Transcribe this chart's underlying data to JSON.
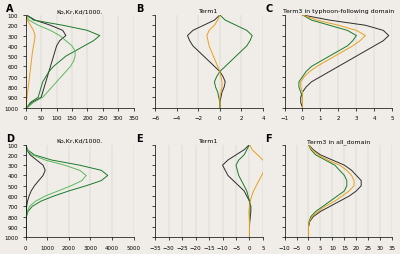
{
  "pressure_levels": [
    100,
    150,
    200,
    250,
    300,
    350,
    400,
    450,
    500,
    550,
    600,
    650,
    700,
    750,
    800,
    850,
    900,
    950,
    1000
  ],
  "panel_A": {
    "title": "Ko,Kr,Kd/1000.",
    "xlim": [
      0,
      350
    ],
    "xticks": [
      0,
      50,
      100,
      150,
      200,
      250,
      300,
      350
    ],
    "Ko_black": [
      2,
      30,
      80,
      120,
      130,
      110,
      100,
      95,
      90,
      85,
      80,
      75,
      70,
      65,
      60,
      55,
      50,
      20,
      5
    ],
    "Kr_green_dark": [
      2,
      25,
      120,
      200,
      240,
      220,
      190,
      160,
      130,
      110,
      90,
      75,
      65,
      55,
      50,
      45,
      40,
      15,
      3
    ],
    "Kd_green_light": [
      2,
      10,
      40,
      80,
      110,
      130,
      150,
      160,
      160,
      155,
      145,
      130,
      115,
      100,
      85,
      70,
      55,
      25,
      5
    ],
    "Ko_orange": [
      1,
      5,
      15,
      25,
      30,
      28,
      25,
      22,
      20,
      18,
      16,
      14,
      12,
      10,
      8,
      6,
      4,
      2,
      1
    ]
  },
  "panel_B": {
    "title": "Term1",
    "xlim": [
      -6,
      4
    ],
    "xticks": [
      -6,
      -4,
      -2,
      0,
      2,
      4
    ],
    "line_black": [
      0,
      -0.5,
      -1.5,
      -2.5,
      -3.0,
      -2.8,
      -2.5,
      -2.0,
      -1.5,
      -1.0,
      -0.5,
      0,
      0.3,
      0.5,
      0.4,
      0.2,
      0.1,
      0,
      0
    ],
    "line_green": [
      0,
      0.5,
      1.5,
      2.5,
      3.0,
      2.8,
      2.5,
      2.0,
      1.5,
      1.0,
      0.5,
      0,
      -0.3,
      -0.5,
      -0.4,
      -0.2,
      -0.1,
      0,
      0
    ],
    "line_orange": [
      0,
      -0.2,
      -0.5,
      -1.0,
      -1.2,
      -1.1,
      -1.0,
      -0.8,
      -0.6,
      -0.4,
      -0.2,
      0,
      0.1,
      0.2,
      0.2,
      0.1,
      0,
      0,
      0
    ]
  },
  "panel_C": {
    "title": "Term3 in typhoon-following domain",
    "xlim": [
      -1,
      5
    ],
    "xticks": [
      -1,
      0,
      1,
      2,
      3,
      4,
      5
    ],
    "line_black": [
      0,
      1.5,
      3.5,
      4.5,
      4.8,
      4.5,
      4.0,
      3.5,
      3.0,
      2.5,
      2.0,
      1.5,
      1.0,
      0.5,
      0.2,
      0,
      -0.1,
      -0.1,
      0
    ],
    "line_green": [
      0,
      0.5,
      1.5,
      2.5,
      3.0,
      2.8,
      2.5,
      2.0,
      1.5,
      1.0,
      0.5,
      0.2,
      0,
      -0.2,
      -0.2,
      -0.1,
      0,
      0,
      0
    ],
    "line_orange": [
      0,
      0.8,
      2.0,
      3.0,
      3.5,
      3.2,
      2.8,
      2.3,
      1.8,
      1.3,
      0.8,
      0.4,
      0.1,
      -0.1,
      -0.1,
      0,
      0,
      0,
      0
    ]
  },
  "panel_D": {
    "title": "Ko,Kr,Kd/1000.",
    "xlim": [
      0,
      5000
    ],
    "xticks": [
      0,
      1000,
      2000,
      3000,
      4000,
      5000
    ],
    "Ko_black": [
      5,
      50,
      200,
      500,
      800,
      900,
      800,
      600,
      400,
      250,
      150,
      80,
      40,
      15,
      5,
      2,
      1,
      0,
      0
    ],
    "Kr_green_dark": [
      5,
      80,
      400,
      1200,
      2500,
      3500,
      3800,
      3500,
      2800,
      2000,
      1300,
      700,
      300,
      100,
      30,
      8,
      2,
      0,
      0
    ],
    "Kd_green_light": [
      5,
      60,
      300,
      900,
      1800,
      2500,
      2800,
      2600,
      2100,
      1500,
      900,
      450,
      180,
      60,
      15,
      4,
      1,
      0,
      0
    ]
  },
  "panel_E": {
    "title": "Term1",
    "xlim": [
      -35,
      5
    ],
    "xticks": [
      -35,
      -30,
      -25,
      -20,
      -15,
      -10,
      -5,
      0,
      5
    ],
    "line_black": [
      0,
      -2,
      -5,
      -8,
      -10,
      -9,
      -8,
      -6,
      -4,
      -2,
      -1,
      0,
      0.5,
      0.5,
      0.3,
      0.1,
      0,
      0,
      0
    ],
    "line_green": [
      0,
      -1,
      -2,
      -4,
      -5,
      -4.5,
      -4,
      -3,
      -2,
      -1,
      -0.5,
      0,
      0.2,
      0.2,
      0.1,
      0,
      0,
      0,
      0
    ],
    "line_orange": [
      0,
      1,
      3,
      5,
      6,
      5.5,
      4.5,
      3.5,
      2.5,
      1.5,
      0.8,
      0.3,
      0,
      -0.2,
      -0.1,
      0,
      0,
      0,
      0
    ]
  },
  "panel_F": {
    "title": "Term3 in all_domain",
    "xlim": [
      -10,
      35
    ],
    "xticks": [
      -10,
      -5,
      0,
      5,
      10,
      15,
      20,
      25,
      30,
      35
    ],
    "line_black": [
      0,
      2,
      5,
      10,
      15,
      18,
      20,
      22,
      22,
      20,
      17,
      13,
      9,
      5,
      2,
      0.5,
      0,
      0,
      0
    ],
    "line_green": [
      0,
      1,
      3,
      7,
      11,
      13,
      15,
      16,
      16,
      15,
      12,
      9,
      6,
      3,
      1,
      0.2,
      0,
      0,
      0
    ],
    "line_orange": [
      0,
      1.5,
      4,
      8,
      13,
      16,
      18,
      19,
      19,
      17,
      14,
      11,
      7,
      4,
      1.5,
      0.3,
      0,
      0,
      0
    ]
  },
  "pressure_ylim": [
    100,
    1000
  ],
  "pressure_yticks": [
    100,
    200,
    300,
    400,
    500,
    600,
    700,
    800,
    900,
    1000
  ],
  "color_black": "#2d2d2d",
  "color_green_dark": "#1a7a2a",
  "color_green_light": "#5cb85c",
  "color_orange": "#e8a020",
  "bg_color": "#f0ede8"
}
